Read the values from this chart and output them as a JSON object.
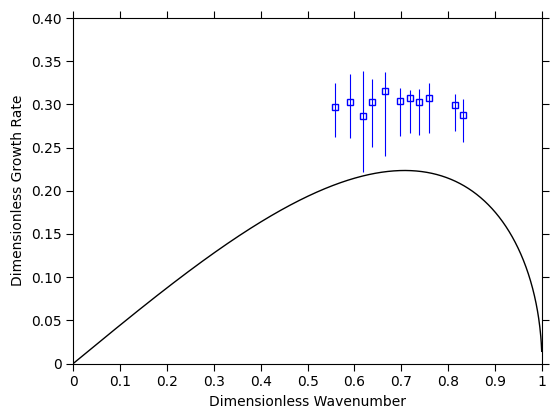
{
  "title": "",
  "xlabel": "Dimensionless Wavenumber",
  "ylabel": "Dimensionless Growth Rate",
  "xlim": [
    0,
    1.0
  ],
  "ylim": [
    0,
    0.4
  ],
  "xticks": [
    0,
    0.1,
    0.2,
    0.3,
    0.4,
    0.5,
    0.6,
    0.7,
    0.8,
    0.9,
    1.0
  ],
  "yticks": [
    0,
    0.05,
    0.1,
    0.15,
    0.2,
    0.25,
    0.3,
    0.35,
    0.4
  ],
  "data_x": [
    0.558,
    0.59,
    0.618,
    0.638,
    0.665,
    0.698,
    0.718,
    0.738,
    0.758,
    0.815,
    0.832
  ],
  "data_y": [
    0.297,
    0.303,
    0.287,
    0.303,
    0.315,
    0.304,
    0.307,
    0.303,
    0.307,
    0.299,
    0.288
  ],
  "data_yerr_upper": [
    0.028,
    0.032,
    0.052,
    0.027,
    0.022,
    0.015,
    0.01,
    0.015,
    0.018,
    0.013,
    0.018
  ],
  "data_yerr_lower": [
    0.035,
    0.042,
    0.065,
    0.052,
    0.075,
    0.04,
    0.04,
    0.038,
    0.04,
    0.03,
    0.032
  ],
  "line_color": "black",
  "marker_color": "blue",
  "marker": "s",
  "marker_size": 5,
  "line_width": 1.0,
  "font_size": 10,
  "tick_font_size": 10,
  "bg_color": "#ffffff",
  "curve_scale": 0.447
}
